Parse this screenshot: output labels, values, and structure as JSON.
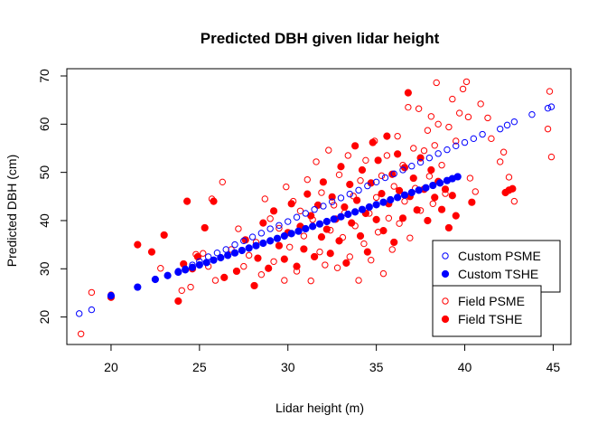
{
  "chart_data": {
    "type": "scatter",
    "title": "Predicted DBH given lidar height",
    "xlabel": "Lidar height (m)",
    "ylabel": "Predicted DBH (cm)",
    "xlim": [
      17.5,
      46
    ],
    "ylim": [
      14.3,
      71.5
    ],
    "x_ticks": [
      20,
      25,
      30,
      35,
      40,
      45
    ],
    "y_ticks": [
      20,
      30,
      40,
      50,
      60,
      70
    ],
    "grid": false,
    "colors": {
      "red": "#ff0000",
      "blue": "#0000ff"
    },
    "legend_groups": [
      {
        "position": "bottom-right-upper",
        "entries": [
          {
            "label": "Custom PSME",
            "series": "Custom PSME"
          },
          {
            "label": "Custom TSHE",
            "series": "Custom TSHE"
          }
        ]
      },
      {
        "position": "bottom-right-lower",
        "entries": [
          {
            "label": "Field PSME",
            "series": "Field PSME"
          },
          {
            "label": "Field TSHE",
            "series": "Field TSHE"
          }
        ]
      }
    ],
    "series": [
      {
        "name": "Field PSME",
        "color": "#ff0000",
        "marker": "open-circle",
        "points": [
          [
            18.3,
            16.5
          ],
          [
            18.9,
            25.1
          ],
          [
            20,
            24.6
          ],
          [
            22.8,
            30.1
          ],
          [
            24,
            25.5
          ],
          [
            24.5,
            26.2
          ],
          [
            24.8,
            33
          ],
          [
            25.2,
            33.2
          ],
          [
            25.5,
            30.5
          ],
          [
            25.7,
            44.5
          ],
          [
            25.9,
            27.6
          ],
          [
            26.3,
            48
          ],
          [
            26.8,
            34
          ],
          [
            27.2,
            38.3
          ],
          [
            27.5,
            30.5
          ],
          [
            27.8,
            32.8
          ],
          [
            28.2,
            35.5
          ],
          [
            28.5,
            28.8
          ],
          [
            28.7,
            44.5
          ],
          [
            29,
            40.4
          ],
          [
            29.2,
            31.5
          ],
          [
            29.5,
            38.4
          ],
          [
            29.8,
            27.6
          ],
          [
            29.9,
            47
          ],
          [
            30.1,
            34.5
          ],
          [
            30.3,
            44
          ],
          [
            30.5,
            29.5
          ],
          [
            30.7,
            42
          ],
          [
            30.9,
            36.8
          ],
          [
            31.1,
            48.5
          ],
          [
            31.3,
            27.5
          ],
          [
            31.4,
            40.2
          ],
          [
            31.6,
            52.2
          ],
          [
            31.8,
            33.5
          ],
          [
            31.9,
            45.8
          ],
          [
            32.1,
            30.8
          ],
          [
            32.3,
            54.6
          ],
          [
            32.4,
            38
          ],
          [
            32.6,
            43.2
          ],
          [
            32.8,
            30.2
          ],
          [
            32.9,
            49.5
          ],
          [
            33.1,
            36.5
          ],
          [
            33.2,
            41.6
          ],
          [
            33.4,
            53.5
          ],
          [
            33.5,
            32.5
          ],
          [
            33.7,
            45.1
          ],
          [
            33.8,
            38.9
          ],
          [
            34,
            27.6
          ],
          [
            34.1,
            48.3
          ],
          [
            34.3,
            35.2
          ],
          [
            34.4,
            52.5
          ],
          [
            34.6,
            41.5
          ],
          [
            34.7,
            31.8
          ],
          [
            34.9,
            56.5
          ],
          [
            35,
            44.8
          ],
          [
            35.1,
            37.6
          ],
          [
            35.3,
            49.3
          ],
          [
            35.4,
            29
          ],
          [
            35.6,
            53.5
          ],
          [
            35.7,
            40.5
          ],
          [
            35.9,
            34
          ],
          [
            36,
            47.1
          ],
          [
            36.2,
            57.5
          ],
          [
            36.3,
            39.4
          ],
          [
            36.5,
            51.5
          ],
          [
            36.6,
            44
          ],
          [
            36.8,
            63.5
          ],
          [
            36.9,
            36.4
          ],
          [
            37.1,
            55
          ],
          [
            37.2,
            46.7
          ],
          [
            37.4,
            63.2
          ],
          [
            37.5,
            42.1
          ],
          [
            37.7,
            54.5
          ],
          [
            37.9,
            58.7
          ],
          [
            38,
            49.2
          ],
          [
            38.1,
            61.6
          ],
          [
            38.2,
            43.5
          ],
          [
            38.3,
            55.6
          ],
          [
            38.4,
            68.6
          ],
          [
            38.5,
            60
          ],
          [
            38.7,
            51.5
          ],
          [
            38.9,
            45.6
          ],
          [
            39.1,
            59.4
          ],
          [
            39.3,
            65.2
          ],
          [
            39.5,
            56.5
          ],
          [
            39.7,
            62.3
          ],
          [
            39.9,
            67.3
          ],
          [
            40.1,
            68.8
          ],
          [
            40.2,
            61.5
          ],
          [
            40.3,
            48.8
          ],
          [
            40.6,
            46
          ],
          [
            40.9,
            64.2
          ],
          [
            41.3,
            61.3
          ],
          [
            41.5,
            57
          ],
          [
            42,
            52.2
          ],
          [
            42.2,
            54.2
          ],
          [
            42.5,
            49
          ],
          [
            42.8,
            44
          ],
          [
            44.7,
            59
          ],
          [
            44.8,
            66.8
          ],
          [
            44.9,
            53.2
          ]
        ]
      },
      {
        "name": "Field TSHE",
        "color": "#ff0000",
        "marker": "filled-circle",
        "points": [
          [
            20,
            24.1
          ],
          [
            21.5,
            35
          ],
          [
            22.3,
            33.5
          ],
          [
            23,
            37
          ],
          [
            23.8,
            23.3
          ],
          [
            24.1,
            31
          ],
          [
            24.3,
            44
          ],
          [
            24.6,
            30
          ],
          [
            24.9,
            32.5
          ],
          [
            25.3,
            38.5
          ],
          [
            25.8,
            44
          ],
          [
            26.4,
            28.2
          ],
          [
            27.1,
            29.5
          ],
          [
            27.6,
            36
          ],
          [
            28.1,
            26.5
          ],
          [
            28.3,
            32.2
          ],
          [
            28.6,
            39.5
          ],
          [
            28.9,
            30.1
          ],
          [
            29.2,
            42
          ],
          [
            29.5,
            34.8
          ],
          [
            29.8,
            32
          ],
          [
            30,
            37.5
          ],
          [
            30.2,
            43.5
          ],
          [
            30.5,
            30.5
          ],
          [
            30.7,
            38.8
          ],
          [
            30.9,
            34.1
          ],
          [
            31.1,
            45.5
          ],
          [
            31.3,
            41
          ],
          [
            31.5,
            32.5
          ],
          [
            31.7,
            43.2
          ],
          [
            31.9,
            36.6
          ],
          [
            32,
            48
          ],
          [
            32.2,
            38.2
          ],
          [
            32.4,
            33.2
          ],
          [
            32.5,
            44.9
          ],
          [
            32.7,
            40.3
          ],
          [
            32.9,
            35.8
          ],
          [
            33,
            51.2
          ],
          [
            33.2,
            42.8
          ],
          [
            33.3,
            31.2
          ],
          [
            33.5,
            47.5
          ],
          [
            33.6,
            39.5
          ],
          [
            33.8,
            55.5
          ],
          [
            33.9,
            44.2
          ],
          [
            34.1,
            36.8
          ],
          [
            34.2,
            50.5
          ],
          [
            34.4,
            41.5
          ],
          [
            34.5,
            33.5
          ],
          [
            34.7,
            47.8
          ],
          [
            34.8,
            56.2
          ],
          [
            35,
            40.2
          ],
          [
            35.1,
            52.5
          ],
          [
            35.3,
            45.6
          ],
          [
            35.4,
            37.9
          ],
          [
            35.6,
            57.5
          ],
          [
            35.7,
            43.5
          ],
          [
            35.9,
            49.6
          ],
          [
            36,
            35.5
          ],
          [
            36.2,
            53.8
          ],
          [
            36.3,
            46.2
          ],
          [
            36.5,
            40.5
          ],
          [
            36.6,
            51
          ],
          [
            36.8,
            66.5
          ],
          [
            36.9,
            45
          ],
          [
            37.1,
            48.8
          ],
          [
            37.3,
            42.2
          ],
          [
            37.5,
            53
          ],
          [
            37.7,
            46.5
          ],
          [
            37.9,
            40
          ],
          [
            38.1,
            50.5
          ],
          [
            38.3,
            44.8
          ],
          [
            38.5,
            48.1
          ],
          [
            38.7,
            42.3
          ],
          [
            38.9,
            46.5
          ],
          [
            39.1,
            38.5
          ],
          [
            39.3,
            45.2
          ],
          [
            39.5,
            41
          ],
          [
            40.4,
            43.8
          ],
          [
            42.3,
            45.8
          ],
          [
            42.5,
            46.3
          ],
          [
            42.7,
            46.6
          ]
        ]
      },
      {
        "name": "Custom PSME",
        "color": "#0000ff",
        "marker": "open-circle",
        "points": [
          [
            18.2,
            20.7
          ],
          [
            18.9,
            21.5
          ],
          [
            20,
            24.5
          ],
          [
            23.8,
            29.5
          ],
          [
            24.2,
            30
          ],
          [
            24.6,
            30.8
          ],
          [
            25,
            31.5
          ],
          [
            25.5,
            32.5
          ],
          [
            26,
            33.3
          ],
          [
            26.5,
            34
          ],
          [
            27,
            35
          ],
          [
            27.5,
            35.8
          ],
          [
            28,
            36.6
          ],
          [
            28.5,
            37.4
          ],
          [
            29,
            38.3
          ],
          [
            29.5,
            39
          ],
          [
            30,
            39.8
          ],
          [
            30.5,
            40.7
          ],
          [
            31,
            41.5
          ],
          [
            31.5,
            42.3
          ],
          [
            32,
            43
          ],
          [
            32.5,
            43.9
          ],
          [
            33,
            44.7
          ],
          [
            33.5,
            45.5
          ],
          [
            34,
            46.3
          ],
          [
            34.5,
            47.2
          ],
          [
            35,
            48
          ],
          [
            35.5,
            48.9
          ],
          [
            36,
            49.7
          ],
          [
            36.5,
            50.5
          ],
          [
            37,
            51.3
          ],
          [
            37.5,
            52.1
          ],
          [
            38,
            53
          ],
          [
            38.5,
            53.9
          ],
          [
            39,
            54.7
          ],
          [
            39.5,
            55.5
          ],
          [
            40,
            56.2
          ],
          [
            40.5,
            57
          ],
          [
            41,
            57.9
          ],
          [
            42,
            59
          ],
          [
            42.4,
            59.8
          ],
          [
            42.8,
            60.5
          ],
          [
            43.8,
            62
          ],
          [
            44.7,
            63.3
          ],
          [
            44.9,
            63.6
          ]
        ]
      },
      {
        "name": "Custom TSHE",
        "color": "#0000ff",
        "marker": "filled-circle",
        "points": [
          [
            20,
            24.4
          ],
          [
            21.5,
            26.2
          ],
          [
            22.5,
            27.8
          ],
          [
            23.2,
            28.6
          ],
          [
            23.8,
            29.3
          ],
          [
            24.2,
            29.8
          ],
          [
            24.6,
            30.3
          ],
          [
            25,
            30.8
          ],
          [
            25.4,
            31.3
          ],
          [
            25.8,
            31.8
          ],
          [
            26.2,
            32.3
          ],
          [
            26.6,
            32.8
          ],
          [
            27,
            33.3
          ],
          [
            27.4,
            33.8
          ],
          [
            27.8,
            34.3
          ],
          [
            28.2,
            34.8
          ],
          [
            28.6,
            35.3
          ],
          [
            29,
            35.8
          ],
          [
            29.4,
            36.3
          ],
          [
            29.8,
            36.8
          ],
          [
            30.2,
            37.3
          ],
          [
            30.6,
            37.8
          ],
          [
            31,
            38.3
          ],
          [
            31.4,
            38.8
          ],
          [
            31.8,
            39.3
          ],
          [
            32.2,
            39.8
          ],
          [
            32.6,
            40.3
          ],
          [
            33,
            40.8
          ],
          [
            33.4,
            41.3
          ],
          [
            33.8,
            41.8
          ],
          [
            34.2,
            42.3
          ],
          [
            34.6,
            42.8
          ],
          [
            35,
            43.3
          ],
          [
            35.4,
            43.8
          ],
          [
            35.8,
            44.3
          ],
          [
            36.2,
            44.8
          ],
          [
            36.6,
            45.3
          ],
          [
            37,
            45.8
          ],
          [
            37.4,
            46.3
          ],
          [
            37.8,
            46.8
          ],
          [
            38.2,
            47.3
          ],
          [
            38.6,
            47.8
          ],
          [
            39,
            48.3
          ],
          [
            39.3,
            48.7
          ],
          [
            39.6,
            49.1
          ]
        ]
      }
    ]
  }
}
